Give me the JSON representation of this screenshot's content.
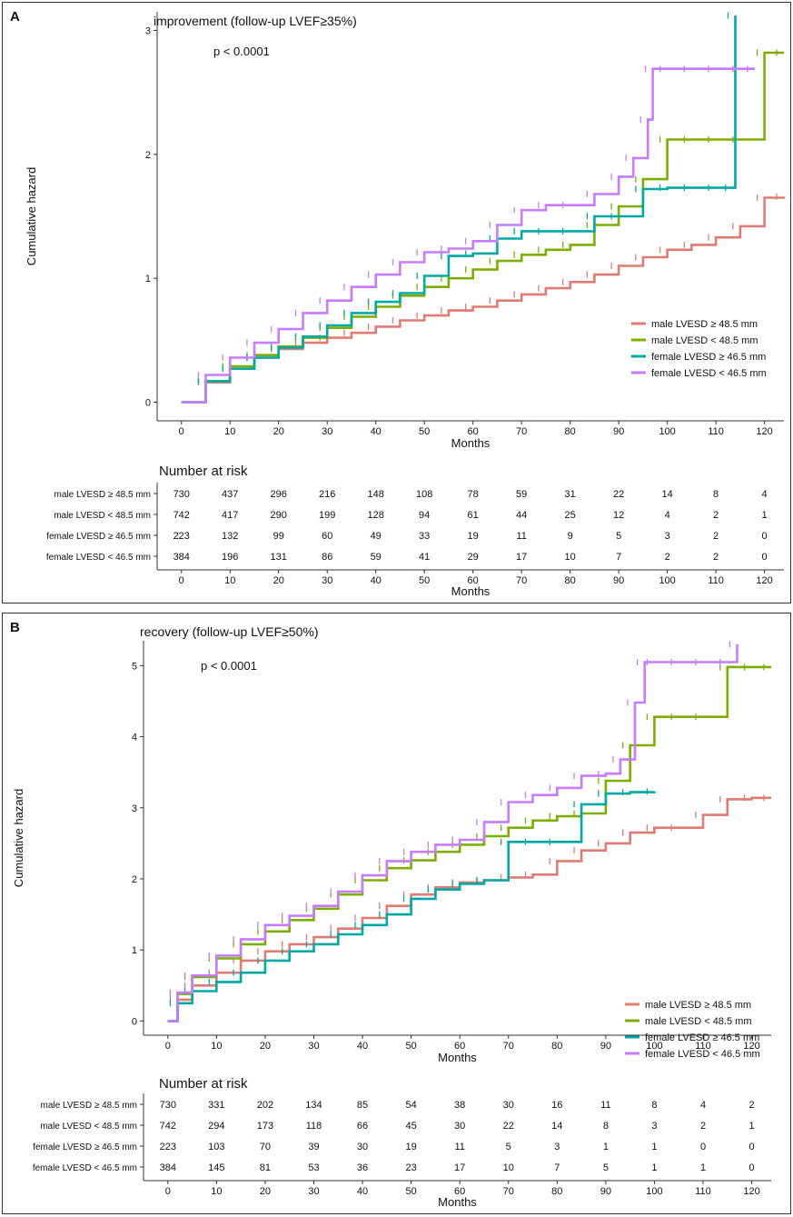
{
  "colors": {
    "male_ge": "#E07B73",
    "male_lt": "#7CAE00",
    "female_ge": "#00A9A5",
    "female_lt": "#C77CFF"
  },
  "chart_data": [
    {
      "panel_label": "A",
      "type": "line",
      "step": true,
      "title": "improvement (follow-up LVEF≥35%)",
      "pvalue": "p < 0.0001",
      "xlabel": "Months",
      "ylabel": "Cumulative hazard",
      "xlim": [
        -5,
        124
      ],
      "ylim": [
        -0.15,
        3.15
      ],
      "xticks": [
        0,
        10,
        20,
        30,
        40,
        50,
        60,
        70,
        80,
        90,
        100,
        110,
        120
      ],
      "yticks": [
        0,
        1,
        2,
        3
      ],
      "legend_position": "right",
      "series": [
        {
          "name": "male LVESD ≥ 48.5 mm",
          "color_key": "male_ge",
          "x": [
            0,
            5,
            10,
            15,
            20,
            25,
            30,
            35,
            40,
            45,
            50,
            55,
            60,
            65,
            70,
            75,
            80,
            85,
            90,
            95,
            100,
            105,
            110,
            115,
            120,
            124
          ],
          "y": [
            0,
            0.16,
            0.27,
            0.36,
            0.43,
            0.48,
            0.52,
            0.56,
            0.61,
            0.66,
            0.7,
            0.74,
            0.77,
            0.82,
            0.87,
            0.92,
            0.97,
            1.03,
            1.1,
            1.17,
            1.23,
            1.27,
            1.33,
            1.42,
            1.65,
            1.66
          ]
        },
        {
          "name": "male LVESD < 48.5 mm",
          "color_key": "male_lt",
          "x": [
            0,
            5,
            10,
            15,
            20,
            25,
            30,
            35,
            40,
            45,
            50,
            55,
            60,
            65,
            70,
            75,
            80,
            85,
            90,
            95,
            100,
            105,
            110,
            115,
            120,
            124
          ],
          "y": [
            0,
            0.17,
            0.29,
            0.38,
            0.45,
            0.52,
            0.6,
            0.69,
            0.77,
            0.86,
            0.93,
            1.0,
            1.07,
            1.14,
            1.19,
            1.23,
            1.27,
            1.43,
            1.58,
            1.8,
            2.12,
            2.12,
            2.12,
            2.12,
            2.82,
            2.82
          ]
        },
        {
          "name": "female LVESD ≥ 46.5 mm",
          "color_key": "female_ge",
          "x": [
            0,
            5,
            10,
            15,
            20,
            25,
            30,
            35,
            40,
            45,
            50,
            55,
            60,
            65,
            70,
            75,
            80,
            85,
            90,
            95,
            100,
            105,
            110,
            113.5,
            114
          ],
          "y": [
            0,
            0.17,
            0.27,
            0.36,
            0.44,
            0.53,
            0.62,
            0.72,
            0.81,
            0.88,
            1.02,
            1.18,
            1.2,
            1.32,
            1.38,
            1.38,
            1.38,
            1.5,
            1.5,
            1.72,
            1.73,
            1.73,
            1.73,
            1.73,
            3.12
          ]
        },
        {
          "name": "female LVESD < 46.5 mm",
          "color_key": "female_lt",
          "x": [
            0,
            5,
            10,
            15,
            20,
            25,
            30,
            35,
            40,
            45,
            50,
            55,
            60,
            65,
            70,
            75,
            80,
            85,
            90,
            93,
            96,
            97,
            100,
            105,
            110,
            115,
            118
          ],
          "y": [
            0,
            0.22,
            0.36,
            0.48,
            0.59,
            0.72,
            0.82,
            0.93,
            1.03,
            1.13,
            1.21,
            1.24,
            1.3,
            1.43,
            1.55,
            1.59,
            1.59,
            1.68,
            1.82,
            1.97,
            2.28,
            2.69,
            2.69,
            2.69,
            2.69,
            2.69,
            2.69
          ]
        }
      ],
      "risk_table": {
        "title": "Number at risk",
        "xlabel": "Months",
        "rows": [
          {
            "label": "male LVESD ≥ 48.5 mm",
            "values": [
              "730",
              "437",
              "296",
              "216",
              "148",
              "108",
              "78",
              "59",
              "31",
              "22",
              "14",
              "8",
              "4"
            ]
          },
          {
            "label": "male LVESD < 48.5 mm",
            "values": [
              "742",
              "417",
              "290",
              "199",
              "128",
              "94",
              "61",
              "44",
              "25",
              "12",
              "4",
              "2",
              "1"
            ]
          },
          {
            "label": "female LVESD ≥ 46.5 mm",
            "values": [
              "223",
              "132",
              "99",
              "60",
              "49",
              "33",
              "19",
              "11",
              "9",
              "5",
              "3",
              "2",
              "0"
            ]
          },
          {
            "label": "female LVESD < 46.5 mm",
            "values": [
              "384",
              "196",
              "131",
              "86",
              "59",
              "41",
              "29",
              "17",
              "10",
              "7",
              "2",
              "2",
              "0"
            ]
          }
        ]
      }
    },
    {
      "panel_label": "B",
      "type": "line",
      "step": true,
      "title": "recovery (follow-up LVEF≥50%)",
      "pvalue": "p < 0.0001",
      "xlabel": "Months",
      "ylabel": "Cumulative hazard",
      "xlim": [
        -5,
        124
      ],
      "ylim": [
        -0.2,
        5.35
      ],
      "xticks": [
        0,
        10,
        20,
        30,
        40,
        50,
        60,
        70,
        80,
        90,
        100,
        110,
        120
      ],
      "yticks": [
        0,
        1,
        2,
        3,
        4,
        5
      ],
      "legend_position": "right",
      "series": [
        {
          "name": "male LVESD ≥ 48.5 mm",
          "color_key": "male_ge",
          "x": [
            0,
            2,
            5,
            10,
            15,
            20,
            25,
            30,
            35,
            40,
            45,
            50,
            55,
            60,
            65,
            70,
            75,
            80,
            85,
            90,
            95,
            100,
            105,
            110,
            115,
            120,
            124
          ],
          "y": [
            0,
            0.3,
            0.5,
            0.68,
            0.85,
            0.98,
            1.08,
            1.18,
            1.3,
            1.45,
            1.62,
            1.78,
            1.88,
            1.95,
            1.98,
            2.02,
            2.06,
            2.25,
            2.4,
            2.5,
            2.65,
            2.72,
            2.72,
            2.9,
            3.12,
            3.14,
            3.14
          ]
        },
        {
          "name": "male LVESD < 48.5 mm",
          "color_key": "male_lt",
          "x": [
            0,
            2,
            5,
            10,
            15,
            20,
            25,
            30,
            35,
            40,
            45,
            50,
            55,
            60,
            65,
            70,
            75,
            80,
            85,
            90,
            95,
            100,
            105,
            110,
            115,
            120,
            124
          ],
          "y": [
            0,
            0.38,
            0.62,
            0.88,
            1.08,
            1.26,
            1.42,
            1.58,
            1.78,
            1.98,
            2.15,
            2.26,
            2.38,
            2.48,
            2.6,
            2.72,
            2.82,
            2.88,
            2.92,
            3.38,
            3.88,
            4.28,
            4.28,
            4.28,
            4.98,
            4.98,
            4.98
          ]
        },
        {
          "name": "female LVESD ≥ 46.5 mm",
          "color_key": "female_ge",
          "x": [
            0,
            2,
            5,
            10,
            15,
            20,
            25,
            30,
            35,
            40,
            45,
            50,
            55,
            60,
            65,
            70,
            75,
            80,
            85,
            90,
            95,
            100
          ],
          "y": [
            0,
            0.25,
            0.42,
            0.55,
            0.68,
            0.85,
            0.98,
            1.08,
            1.22,
            1.35,
            1.5,
            1.72,
            1.85,
            1.93,
            1.98,
            2.52,
            2.52,
            2.52,
            3.05,
            3.2,
            3.22,
            3.23
          ]
        },
        {
          "name": "female LVESD < 46.5 mm",
          "color_key": "female_lt",
          "x": [
            0,
            2,
            5,
            10,
            15,
            20,
            25,
            30,
            35,
            40,
            45,
            50,
            55,
            60,
            65,
            70,
            75,
            80,
            85,
            90,
            93,
            96,
            98,
            100,
            105,
            110,
            115,
            117
          ],
          "y": [
            0,
            0.4,
            0.64,
            0.92,
            1.15,
            1.35,
            1.48,
            1.62,
            1.82,
            2.05,
            2.25,
            2.38,
            2.48,
            2.55,
            2.8,
            3.08,
            3.18,
            3.28,
            3.45,
            3.48,
            3.68,
            4.48,
            5.05,
            5.05,
            5.05,
            5.05,
            5.05,
            5.3
          ]
        }
      ],
      "risk_table": {
        "title": "Number at risk",
        "xlabel": "Months",
        "rows": [
          {
            "label": "male LVESD ≥ 48.5 mm",
            "values": [
              "730",
              "331",
              "202",
              "134",
              "85",
              "54",
              "38",
              "30",
              "16",
              "11",
              "8",
              "4",
              "2"
            ]
          },
          {
            "label": "male LVESD < 48.5 mm",
            "values": [
              "742",
              "294",
              "173",
              "118",
              "66",
              "45",
              "30",
              "22",
              "14",
              "8",
              "3",
              "2",
              "1"
            ]
          },
          {
            "label": "female LVESD ≥ 46.5 mm",
            "values": [
              "223",
              "103",
              "70",
              "39",
              "30",
              "19",
              "11",
              "5",
              "3",
              "1",
              "1",
              "0",
              "0"
            ]
          },
          {
            "label": "female LVESD < 46.5 mm",
            "values": [
              "384",
              "145",
              "81",
              "53",
              "36",
              "23",
              "17",
              "10",
              "7",
              "5",
              "1",
              "1",
              "0"
            ]
          }
        ]
      }
    }
  ]
}
